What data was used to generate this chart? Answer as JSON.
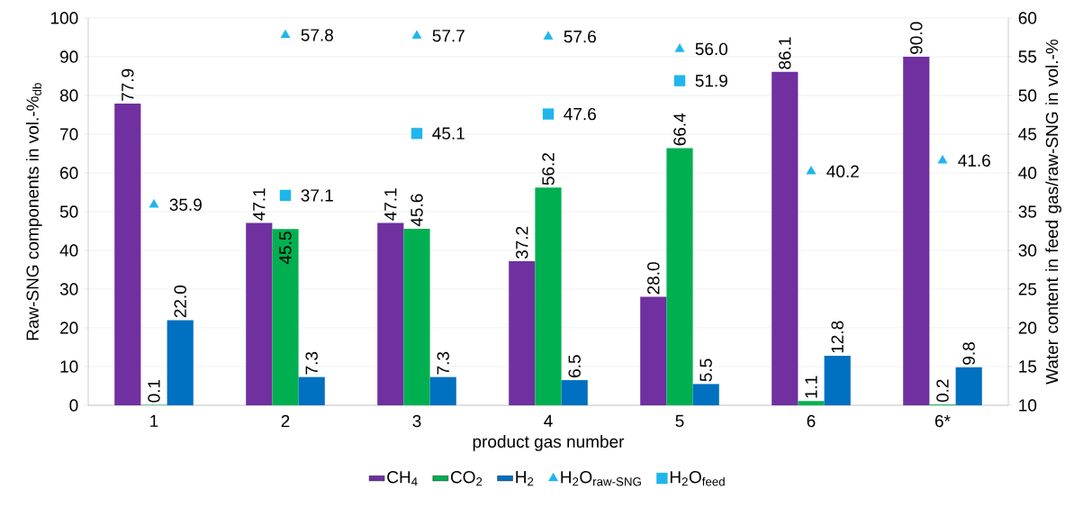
{
  "chart_data": {
    "type": "bar",
    "xlabel": "product gas number",
    "ylabel": "Raw-SNG components in vol.-%$_{db}$",
    "y2label": "Water content in feed gas/raw-SNG in vol.-%",
    "categories": [
      "1",
      "2",
      "3",
      "4",
      "5",
      "6",
      "6*"
    ],
    "series": [
      {
        "name": "CH$_{4}$",
        "color": "#7030a0",
        "values": [
          77.9,
          47.1,
          47.1,
          37.2,
          28.0,
          86.1,
          90.0
        ],
        "value_labels": [
          "77.9",
          "47.1",
          "47.1",
          "37.2",
          "28.0",
          "86.1",
          "90.0"
        ]
      },
      {
        "name": "CO$_{2}$",
        "color": "#00b050",
        "values": [
          0.1,
          45.5,
          45.6,
          56.2,
          66.4,
          1.1,
          0.2
        ],
        "value_labels": [
          "0.1",
          "45.5",
          "45.6",
          "56.2",
          "66.4",
          "1.1",
          "0.2"
        ]
      },
      {
        "name": "H$_{2}$",
        "color": "#0070c0",
        "values": [
          22.0,
          7.3,
          7.3,
          6.5,
          5.5,
          12.8,
          9.8
        ],
        "value_labels": [
          "22.0",
          "7.3",
          "7.3",
          "6.5",
          "5.5",
          "12.8",
          "9.8"
        ]
      },
      {
        "name": "H$_{2}$O$_{raw-SNG}$",
        "color": "#1fb6ec",
        "type": "scatter",
        "axis": "y2",
        "marker": "triangle",
        "values": [
          35.9,
          57.8,
          57.7,
          57.6,
          56.0,
          40.2,
          41.6
        ],
        "value_labels": [
          "35.9",
          "57.8",
          "57.7",
          "57.6",
          "56.0",
          "40.2",
          "41.6"
        ]
      },
      {
        "name": "H$_{2}$O$_{feed}$",
        "color": "#1fb6ec",
        "type": "scatter",
        "axis": "y2",
        "marker": "square",
        "values": [
          null,
          37.1,
          45.1,
          47.6,
          51.9,
          null,
          null
        ],
        "value_labels": [
          null,
          "37.1",
          "45.1",
          "47.6",
          "51.9",
          null,
          null
        ]
      }
    ],
    "ylim": [
      0,
      100
    ],
    "yticks": [
      0,
      10,
      20,
      30,
      40,
      50,
      60,
      70,
      80,
      90,
      100
    ],
    "y2lim": [
      10,
      60
    ],
    "y2ticks": [
      10,
      15,
      20,
      25,
      30,
      35,
      40,
      45,
      50,
      55,
      60
    ],
    "grid": "y",
    "legend": "bottom"
  }
}
